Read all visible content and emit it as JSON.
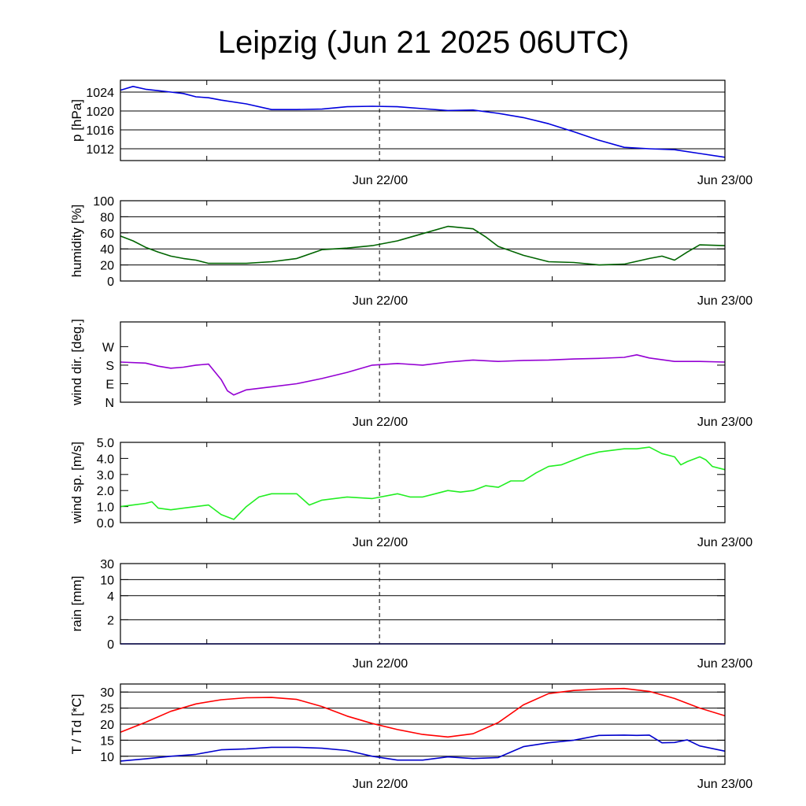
{
  "title": "Leipzig (Jun 21 2025 06UTC)",
  "x_axis": {
    "start": "Jun 21 06UTC",
    "end": "Jun 23 00UTC",
    "tick_labels": [
      "Jun 22/00",
      "Jun 23/00"
    ],
    "minor_ticks_hours": [
      12,
      36
    ],
    "reference_line": "Jun 22/00"
  },
  "colors": {
    "pressure": "#0000dd",
    "humidity": "#006400",
    "wind_dir": "#9400d3",
    "wind_speed": "#22ee22",
    "rain": "#0000ff",
    "temperature": "#ff0000",
    "dewpoint": "#0000cc"
  },
  "chart_data": [
    {
      "type": "line",
      "ylabel": "p [hPa]",
      "ylim": [
        1009.5,
        1026.5
      ],
      "ytick_labels": [
        "1012",
        "1016",
        "1020",
        "1024"
      ],
      "yticks": [
        1012,
        1016,
        1020,
        1024
      ],
      "grid": true,
      "series": [
        {
          "color_key": "pressure",
          "x_hours": [
            0,
            1,
            2,
            3,
            4,
            5,
            6,
            7,
            8,
            10,
            12,
            14,
            16,
            18,
            20,
            22,
            24,
            26,
            28,
            30,
            32,
            34,
            36,
            38,
            40,
            42,
            44,
            46,
            48
          ],
          "y": [
            1024.4,
            1025.2,
            1024.6,
            1024.3,
            1024.0,
            1023.7,
            1023.0,
            1022.8,
            1022.3,
            1021.5,
            1020.3,
            1020.3,
            1020.4,
            1020.9,
            1021.0,
            1020.9,
            1020.5,
            1020.1,
            1020.2,
            1019.5,
            1018.6,
            1017.3,
            1015.6,
            1013.8,
            1012.3,
            1012.0,
            1011.8,
            1011.0,
            1010.2
          ]
        }
      ]
    },
    {
      "type": "line",
      "ylabel": "humidity [%]",
      "ylim": [
        0,
        100
      ],
      "ytick_labels": [
        "0",
        "20",
        "40",
        "60",
        "80",
        "100"
      ],
      "yticks": [
        0,
        20,
        40,
        60,
        80,
        100
      ],
      "grid": true,
      "series": [
        {
          "color_key": "humidity",
          "x_hours": [
            0,
            1,
            2,
            3,
            4,
            5,
            6,
            7,
            8,
            10,
            12,
            14,
            16,
            18,
            20,
            22,
            24,
            26,
            28,
            29,
            30,
            32,
            34,
            36,
            38,
            40,
            42,
            43,
            44,
            45,
            46,
            48
          ],
          "y": [
            56,
            50,
            42,
            36,
            31,
            28,
            26,
            22,
            22,
            22,
            24,
            28,
            39,
            41,
            44,
            50,
            59,
            68,
            65,
            55,
            43,
            32,
            24,
            23,
            20,
            21,
            28,
            31,
            26,
            36,
            45,
            44
          ]
        }
      ]
    },
    {
      "type": "line",
      "ylabel": "wind dir. [deg.]",
      "ylim": [
        0,
        390
      ],
      "ytick_labels": [
        "N",
        "E",
        "S",
        "W"
      ],
      "yticks": [
        0,
        90,
        180,
        270
      ],
      "grid": false,
      "series": [
        {
          "color_key": "wind_dir",
          "x_hours": [
            0,
            2,
            3,
            4,
            5,
            6,
            7,
            8,
            8.5,
            9,
            10,
            12,
            14,
            16,
            18,
            20,
            22,
            24,
            26,
            28,
            30,
            32,
            34,
            36,
            38,
            40,
            41,
            42,
            44,
            46,
            48
          ],
          "y": [
            195,
            190,
            175,
            165,
            170,
            180,
            185,
            110,
            55,
            35,
            60,
            75,
            90,
            115,
            145,
            180,
            188,
            180,
            195,
            205,
            198,
            203,
            205,
            210,
            213,
            218,
            230,
            215,
            198,
            198,
            195
          ]
        }
      ]
    },
    {
      "type": "line",
      "ylabel": "wind sp. [m/s]",
      "ylim": [
        0,
        5.0
      ],
      "ytick_labels": [
        "0.0",
        "1.0",
        "2.0",
        "3.0",
        "4.0",
        "5.0"
      ],
      "yticks": [
        0,
        1,
        2,
        3,
        4,
        5
      ],
      "grid": false,
      "series": [
        {
          "color_key": "wind_speed",
          "x_hours": [
            0,
            1,
            2,
            2.5,
            3,
            4,
            5,
            6,
            7,
            8,
            9,
            10,
            11,
            12,
            14,
            15,
            16,
            18,
            20,
            22,
            23,
            24,
            25,
            26,
            27,
            28,
            29,
            30,
            31,
            32,
            33,
            34,
            35,
            36,
            37,
            38,
            39,
            40,
            41,
            42,
            42.5,
            43,
            44,
            44.5,
            45,
            46,
            46.5,
            47,
            48
          ],
          "y": [
            1.0,
            1.1,
            1.2,
            1.3,
            0.9,
            0.8,
            0.9,
            1.0,
            1.1,
            0.5,
            0.2,
            1.0,
            1.6,
            1.8,
            1.8,
            1.1,
            1.4,
            1.6,
            1.5,
            1.8,
            1.6,
            1.6,
            1.8,
            2.0,
            1.9,
            2.0,
            2.3,
            2.2,
            2.6,
            2.6,
            3.1,
            3.5,
            3.6,
            3.9,
            4.2,
            4.4,
            4.5,
            4.6,
            4.6,
            4.7,
            4.5,
            4.3,
            4.1,
            3.6,
            3.8,
            4.1,
            3.9,
            3.5,
            3.3
          ]
        }
      ]
    },
    {
      "type": "line",
      "ylabel": "rain [mm]",
      "ylim": [
        0,
        30
      ],
      "ytick_labels": [
        "0",
        "2",
        "4",
        "10",
        "30"
      ],
      "yticks": [
        0,
        2,
        4,
        10,
        30
      ],
      "grid": true,
      "series": [
        {
          "color_key": "rain",
          "x_hours": [
            0,
            48
          ],
          "y": [
            0,
            0
          ]
        }
      ]
    },
    {
      "type": "line",
      "ylabel": "T / Td [*C]",
      "ylim": [
        7.5,
        32.5
      ],
      "ytick_labels": [
        "10",
        "15",
        "20",
        "25",
        "30"
      ],
      "yticks": [
        10,
        15,
        20,
        25,
        30
      ],
      "grid": true,
      "series": [
        {
          "color_key": "temperature",
          "x_hours": [
            0,
            2,
            4,
            6,
            8,
            10,
            12,
            14,
            16,
            18,
            20,
            22,
            24,
            26,
            28,
            30,
            32,
            34,
            36,
            38,
            40,
            42,
            44,
            46,
            48
          ],
          "y": [
            17.5,
            20.6,
            24.0,
            26.3,
            27.6,
            28.2,
            28.3,
            27.7,
            25.5,
            22.5,
            20.2,
            18.3,
            16.8,
            16.0,
            17.0,
            20.5,
            26.0,
            29.5,
            30.5,
            30.9,
            31.1,
            30.2,
            28.0,
            25.0,
            22.6
          ]
        },
        {
          "color_key": "dewpoint",
          "x_hours": [
            0,
            2,
            4,
            6,
            8,
            10,
            12,
            14,
            16,
            18,
            20,
            22,
            24,
            26,
            28,
            30,
            32,
            34,
            36,
            38,
            40,
            41,
            42,
            43,
            44,
            45,
            46,
            48
          ],
          "y": [
            8.5,
            9.2,
            10.0,
            10.6,
            12.0,
            12.3,
            12.8,
            12.8,
            12.5,
            11.8,
            10.0,
            8.8,
            8.8,
            9.8,
            9.3,
            9.6,
            13.0,
            14.2,
            15.0,
            16.5,
            16.6,
            16.5,
            16.6,
            14.2,
            14.3,
            15.1,
            13.2,
            11.6
          ]
        }
      ]
    }
  ]
}
